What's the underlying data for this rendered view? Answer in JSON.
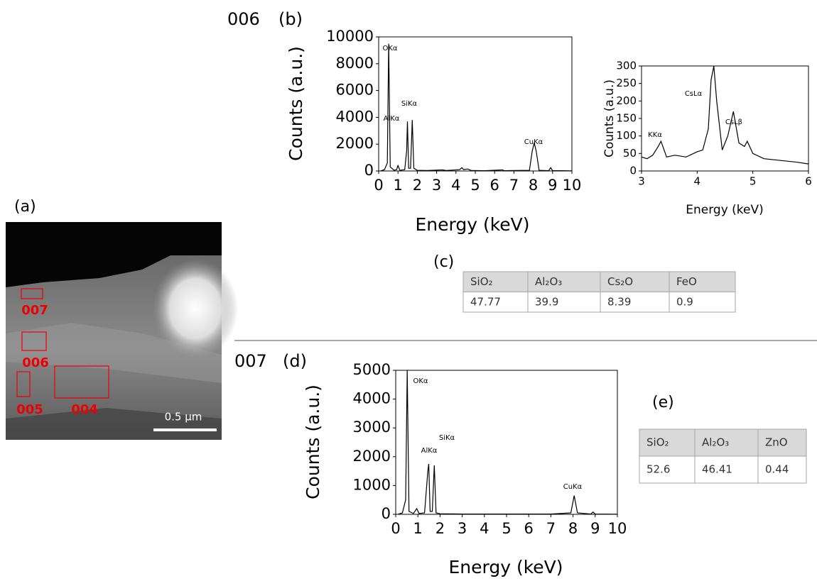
{
  "chart_data": [
    {
      "type": "line",
      "title": "006",
      "panel": "(b)",
      "x_label": "Energy (keV)",
      "y_label": "Counts (a.u.)",
      "x": [
        0.1,
        0.3,
        0.45,
        0.52,
        0.6,
        0.8,
        0.93,
        1.0,
        1.1,
        1.35,
        1.45,
        1.49,
        1.55,
        1.65,
        1.74,
        1.82,
        2.0,
        2.5,
        3.3,
        3.5,
        4.2,
        4.3,
        4.4,
        4.6,
        4.8,
        5.5,
        6.4,
        6.5,
        7.0,
        7.8,
        7.95,
        8.05,
        8.15,
        8.3,
        8.8,
        8.9,
        9.0,
        9.5,
        10
      ],
      "values": [
        0,
        100,
        600,
        9500,
        300,
        50,
        100,
        400,
        50,
        100,
        1500,
        3700,
        200,
        200,
        3800,
        200,
        50,
        30,
        80,
        30,
        100,
        250,
        100,
        150,
        30,
        20,
        80,
        20,
        30,
        50,
        1500,
        2100,
        1500,
        50,
        20,
        250,
        20,
        20,
        10
      ],
      "color": "#000000",
      "xlim": [
        0,
        10
      ],
      "ylim": [
        0,
        10000
      ],
      "xticks": [
        0,
        1,
        2,
        3,
        4,
        5,
        6,
        7,
        8,
        9,
        10
      ],
      "yticks": [
        0,
        2000,
        4000,
        6000,
        8000,
        10000
      ],
      "annotations": [
        "OKα",
        "AlKα",
        "SiKα",
        "CuKα"
      ]
    },
    {
      "type": "line",
      "x_label": "Energy (keV)",
      "y_label": "Counts (a.u.)",
      "x": [
        3.0,
        3.1,
        3.2,
        3.3,
        3.35,
        3.45,
        3.6,
        3.8,
        4.0,
        4.1,
        4.2,
        4.25,
        4.3,
        4.35,
        4.45,
        4.55,
        4.65,
        4.75,
        4.85,
        4.9,
        5.0,
        5.2,
        5.5,
        5.8,
        6.0
      ],
      "values": [
        40,
        35,
        45,
        70,
        85,
        40,
        45,
        40,
        55,
        60,
        120,
        260,
        300,
        200,
        60,
        100,
        170,
        80,
        70,
        85,
        50,
        35,
        30,
        25,
        20
      ],
      "color": "#000000",
      "xlim": [
        3,
        6
      ],
      "ylim": [
        0,
        300
      ],
      "xticks": [
        3,
        4,
        5,
        6
      ],
      "yticks": [
        0,
        50,
        100,
        150,
        200,
        250,
        300
      ],
      "annotations": [
        "KKα",
        "CsLα",
        "CsLβ"
      ]
    },
    {
      "type": "line",
      "title": "007",
      "panel": "(d)",
      "x_label": "Energy (keV)",
      "y_label": "Counts (a.u.)",
      "x": [
        0.1,
        0.3,
        0.45,
        0.52,
        0.6,
        0.8,
        0.95,
        1.05,
        1.3,
        1.45,
        1.49,
        1.55,
        1.65,
        1.74,
        1.82,
        2.0,
        3.0,
        5.0,
        7.0,
        7.9,
        8.05,
        8.2,
        8.8,
        8.9,
        9.0,
        10
      ],
      "values": [
        0,
        50,
        500,
        5000,
        100,
        30,
        200,
        30,
        50,
        1500,
        1750,
        100,
        100,
        1700,
        50,
        20,
        10,
        10,
        10,
        50,
        650,
        50,
        10,
        80,
        10,
        5
      ],
      "color": "#000000",
      "xlim": [
        0,
        10
      ],
      "ylim": [
        0,
        5000
      ],
      "xticks": [
        0,
        1,
        2,
        3,
        4,
        5,
        6,
        7,
        8,
        9,
        10
      ],
      "yticks": [
        0,
        1000,
        2000,
        3000,
        4000,
        5000
      ],
      "annotations": [
        "OKα",
        "AlKα",
        "SiKα",
        "CuKα"
      ]
    }
  ],
  "image": {
    "label": "(a)",
    "regions": [
      "007",
      "006",
      "005",
      "004"
    ],
    "scale_bar": "0.5 µm"
  },
  "table_c": {
    "label": "(c)",
    "header": [
      "SiO₂",
      "Al₂O₃",
      "Cs₂O",
      "FeO"
    ],
    "rows": [
      [
        "47.77",
        "39.9",
        "8.39",
        "0.9"
      ]
    ]
  },
  "table_e": {
    "label": "(e)",
    "header": [
      "SiO₂",
      "Al₂O₃",
      "ZnO"
    ],
    "rows": [
      [
        "52.6",
        "46.41",
        "0.44"
      ]
    ]
  }
}
